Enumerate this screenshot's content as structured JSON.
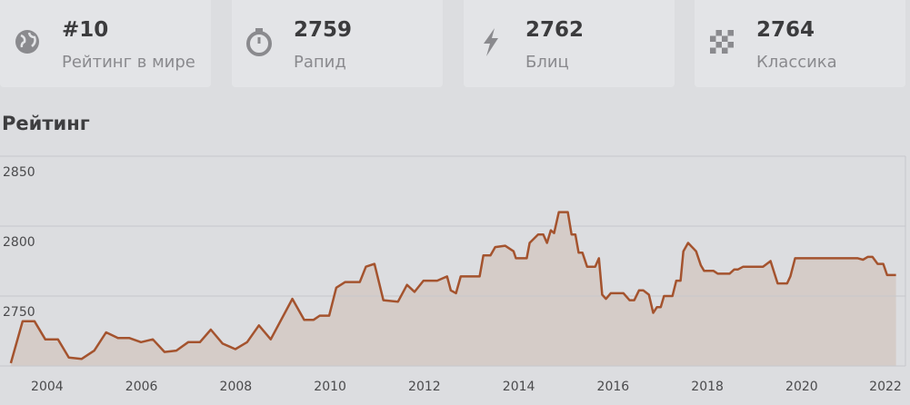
{
  "stats": [
    {
      "value": "#10",
      "label": "Рейтинг в мире"
    },
    {
      "value": 2759,
      "label": "Рапид"
    },
    {
      "value": 2762,
      "label": "Блиц"
    },
    {
      "value": 2764,
      "label": "Классика"
    }
  ],
  "section_title": "Рейтинг",
  "chart_data": {
    "type": "line",
    "x": [
      2003.23,
      2003.48,
      2003.73,
      2003.96,
      2004.23,
      2004.46,
      2004.73,
      2005.0,
      2005.25,
      2005.5,
      2005.74,
      2005.99,
      2006.24,
      2006.49,
      2006.74,
      2006.99,
      2007.24,
      2007.47,
      2007.72,
      2007.99,
      2008.24,
      2008.49,
      2008.74,
      2009.2,
      2009.45,
      2009.65,
      2009.78,
      2009.98,
      2010.13,
      2010.32,
      2010.63,
      2010.76,
      2010.94,
      2011.13,
      2011.44,
      2011.63,
      2011.79,
      2011.98,
      2012.27,
      2012.48,
      2012.56,
      2012.67,
      2012.77,
      2013.17,
      2013.25,
      2013.4,
      2013.5,
      2013.71,
      2013.89,
      2013.94,
      2014.17,
      2014.23,
      2014.41,
      2014.52,
      2014.6,
      2014.68,
      2014.75,
      2014.85,
      2015.04,
      2015.12,
      2015.2,
      2015.27,
      2015.35,
      2015.45,
      2015.62,
      2015.7,
      2015.77,
      2015.85,
      2015.95,
      2016.22,
      2016.35,
      2016.45,
      2016.55,
      2016.64,
      2016.76,
      2016.85,
      2016.93,
      2017.01,
      2017.08,
      2017.26,
      2017.34,
      2017.43,
      2017.49,
      2017.59,
      2017.76,
      2017.86,
      2017.93,
      2018.13,
      2018.22,
      2018.47,
      2018.57,
      2018.65,
      2018.76,
      2019.18,
      2019.34,
      2019.49,
      2019.69,
      2019.76,
      2019.86,
      2021.19,
      2021.3,
      2021.4,
      2021.5,
      2021.61,
      2021.73,
      2021.81,
      2022.0
    ],
    "values": [
      2702,
      2732,
      2732,
      2719,
      2719,
      2706,
      2705,
      2711,
      2724,
      2720,
      2720,
      2717,
      2719,
      2710,
      2711,
      2717,
      2717,
      2726,
      2716,
      2712,
      2717,
      2729,
      2719,
      2748,
      2733,
      2733,
      2736,
      2736,
      2756,
      2760,
      2760,
      2771,
      2773,
      2747,
      2746,
      2758,
      2753,
      2761,
      2761,
      2764,
      2754,
      2752,
      2764,
      2764,
      2779,
      2779,
      2785,
      2786,
      2782,
      2777,
      2777,
      2788,
      2794,
      2794,
      2788,
      2797,
      2795,
      2810,
      2810,
      2794,
      2794,
      2781,
      2781,
      2771,
      2771,
      2777,
      2751,
      2748,
      2752,
      2752,
      2747,
      2747,
      2754,
      2754,
      2751,
      2738,
      2742,
      2742,
      2750,
      2750,
      2761,
      2761,
      2782,
      2788,
      2782,
      2772,
      2768,
      2768,
      2766,
      2766,
      2769,
      2769,
      2771,
      2771,
      2775,
      2759,
      2759,
      2764,
      2777,
      2777,
      2776,
      2778,
      2778,
      2773,
      2773,
      2765,
      2765
    ],
    "color": "#a4532e",
    "fill_color": "#d5ccc8",
    "xlim": [
      2003.0,
      2022.2
    ],
    "xticks": [
      2004,
      2006,
      2008,
      2010,
      2012,
      2014,
      2016,
      2018,
      2020,
      2022
    ],
    "ylim": [
      2700,
      2850
    ],
    "yticks": [
      2750,
      2800,
      2850
    ],
    "grid": true
  }
}
